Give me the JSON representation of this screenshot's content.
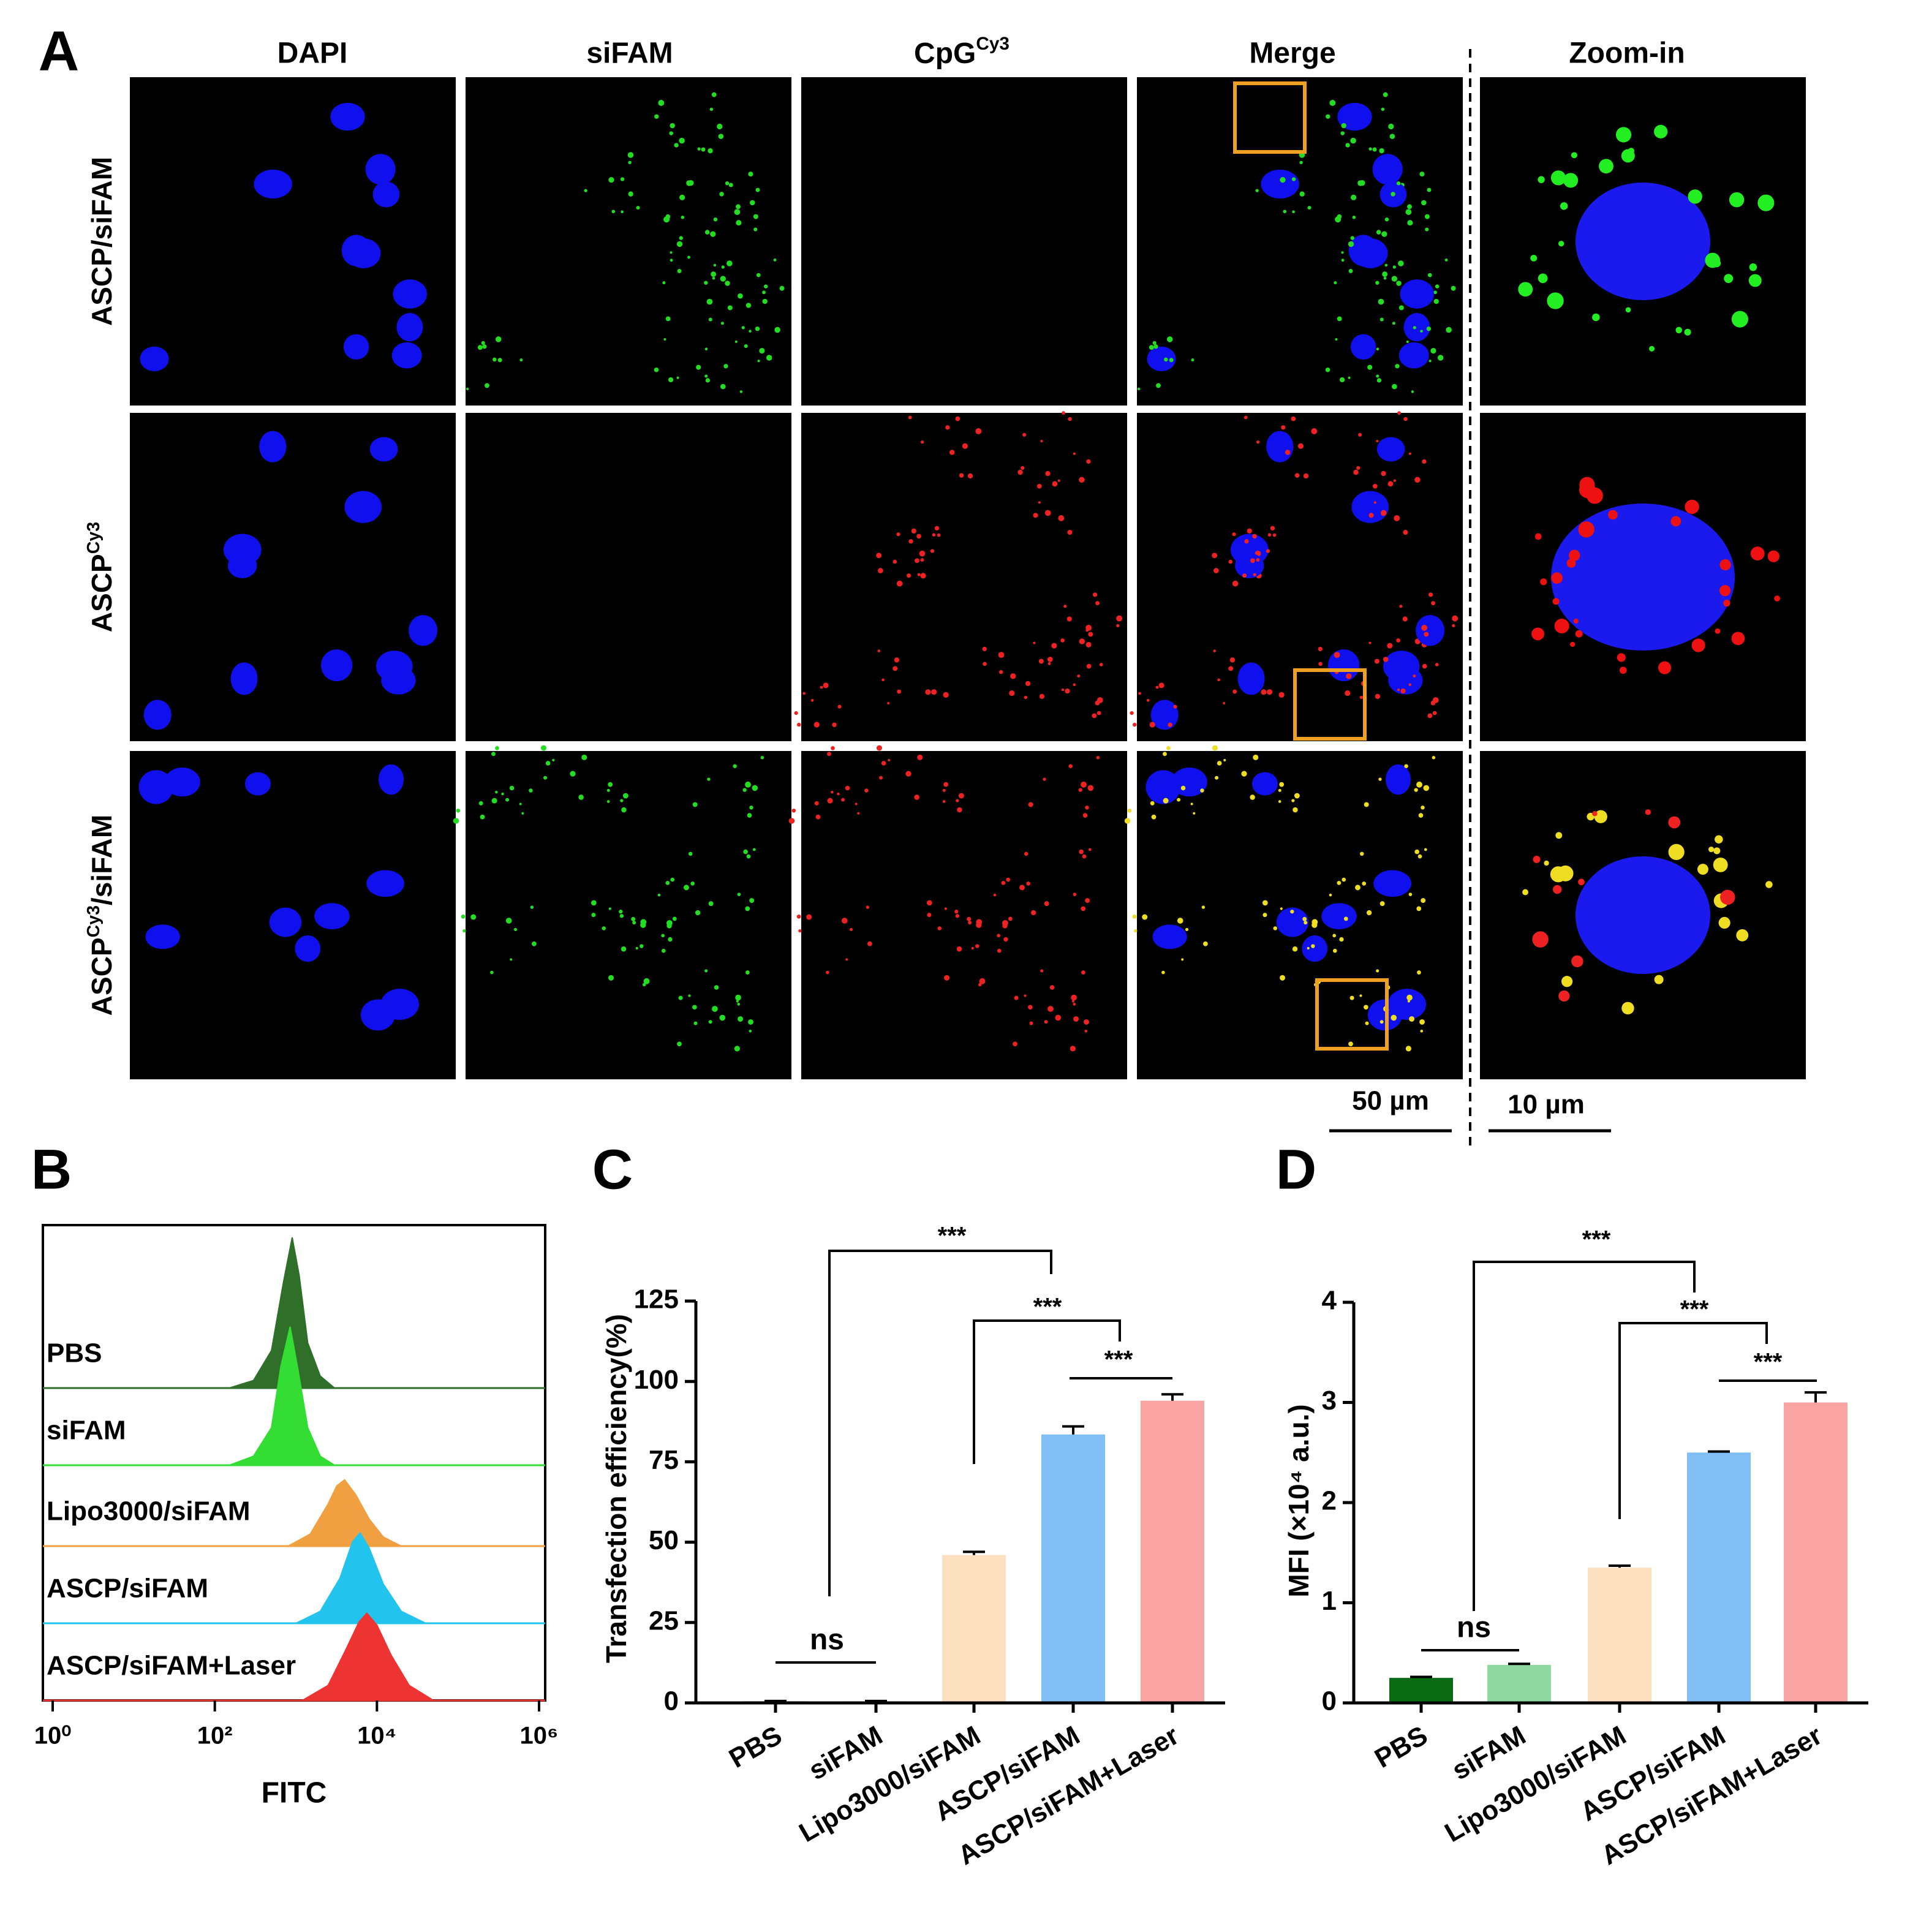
{
  "panel_labels": [
    "A",
    "B",
    "C",
    "D"
  ],
  "panel_a": {
    "columns": [
      "DAPI",
      "siFAM",
      {
        "text": "CpG",
        "sup": "Cy3"
      },
      "Merge",
      "Zoom-in"
    ],
    "rows": [
      {
        "text": "ASCP/siFAM"
      },
      {
        "text": "ASCP",
        "sup": "Cy3"
      },
      {
        "text": "ASCP",
        "sup": "Cy3",
        "after": "/siFAM"
      }
    ],
    "scale_bars": [
      "50 µm",
      "10 µm"
    ]
  },
  "chart_data": [
    {
      "type": "density",
      "xlabel": "FITC",
      "xscale": "log",
      "xlim": [
        1,
        1000000
      ],
      "xticks": [
        {
          "value": 1,
          "label": "10⁰"
        },
        {
          "value": 100,
          "label": "10²"
        },
        {
          "value": 10000,
          "label": "10⁴"
        },
        {
          "value": 1000000,
          "label": "10⁶"
        }
      ],
      "series": [
        {
          "name": "PBS",
          "color": "#2f6f2a",
          "x": [
            150,
            300,
            500,
            700,
            900,
            1100,
            1400,
            2000,
            3000
          ],
          "values": [
            0,
            5,
            25,
            70,
            100,
            75,
            30,
            8,
            0
          ]
        },
        {
          "name": "siFAM",
          "color": "#33dd33",
          "x": [
            150,
            300,
            500,
            650,
            850,
            1050,
            1400,
            2000,
            3000
          ],
          "values": [
            0,
            6,
            25,
            65,
            92,
            65,
            25,
            6,
            0
          ]
        },
        {
          "name": "Lipo3000/siFAM",
          "color": "#f0a040",
          "x": [
            800,
            1500,
            2500,
            3200,
            4000,
            5500,
            8000,
            12000,
            20000
          ],
          "values": [
            0,
            8,
            28,
            40,
            44,
            34,
            18,
            6,
            0
          ]
        },
        {
          "name": "ASCP/siFAM",
          "color": "#22c4ee",
          "x": [
            1000,
            2000,
            3500,
            5000,
            6200,
            8000,
            12000,
            20000,
            40000
          ],
          "values": [
            0,
            8,
            30,
            54,
            60,
            50,
            26,
            8,
            0
          ]
        },
        {
          "name": "ASCP/siFAM+Laser",
          "color": "#ee3333",
          "x": [
            1200,
            2500,
            4000,
            6000,
            7500,
            10000,
            15000,
            25000,
            50000
          ],
          "values": [
            0,
            10,
            32,
            52,
            58,
            50,
            30,
            10,
            0
          ]
        }
      ]
    },
    {
      "type": "bar",
      "ylabel": "Transfection efficiency(%)",
      "categories": [
        "PBS",
        "siFAM",
        "Lipo3000/siFAM",
        "ASCP/siFAM",
        "ASCP/siFAM+Laser"
      ],
      "values": [
        0.5,
        0.5,
        46,
        83.5,
        94
      ],
      "errors": [
        0.1,
        0.1,
        1,
        2.5,
        2
      ],
      "colors": [
        "#1b6b1b",
        "#8fd9a0",
        "#fde0c0",
        "#7fbff5",
        "#f9a3a3"
      ],
      "ylim": [
        0,
        125
      ],
      "yticks": [
        0,
        25,
        50,
        75,
        100,
        125
      ],
      "annotations": [
        "ns",
        "***",
        "***",
        "***"
      ]
    },
    {
      "type": "bar",
      "ylabel": "MFI (×10⁴ a.u.)",
      "categories": [
        "PBS",
        "siFAM",
        "Lipo3000/siFAM",
        "ASCP/siFAM",
        "ASCP/siFAM+Laser"
      ],
      "values": [
        0.25,
        0.38,
        1.35,
        2.5,
        3.0
      ],
      "errors": [
        0.01,
        0.01,
        0.02,
        0.01,
        0.1
      ],
      "colors": [
        "#0b6a14",
        "#8fd9a0",
        "#fde0c0",
        "#7fbff5",
        "#f9a3a3"
      ],
      "ylim": [
        0,
        4
      ],
      "yticks": [
        0,
        1,
        2,
        3,
        4
      ],
      "annotations": [
        "ns",
        "***",
        "***",
        "***"
      ]
    }
  ]
}
